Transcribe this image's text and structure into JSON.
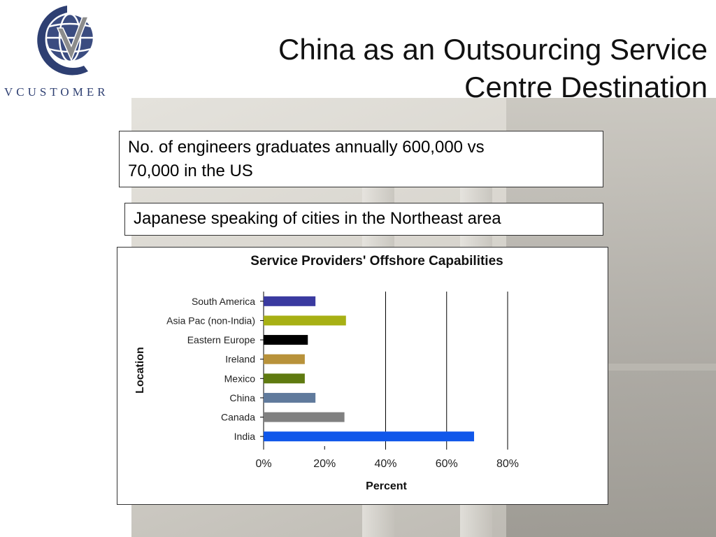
{
  "branding": {
    "company_name": "VCUSTOMER"
  },
  "slide": {
    "title_line1": "China as an Outsourcing Service",
    "title_line2": "Centre Destination"
  },
  "callouts": {
    "box1_line1": "No. of engineers graduates annually 600,000 vs",
    "box1_line2": "70,000 in the US",
    "box2": "Japanese speaking of cities in the Northeast area"
  },
  "colors": {
    "logo_blue": "#2e3f72",
    "logo_gray": "#8c8c8c"
  },
  "chart_data": {
    "type": "bar",
    "orientation": "horizontal",
    "title": "Service Providers' Offshore Capabilities",
    "xlabel": "Percent",
    "ylabel": "Location",
    "xlim": [
      0,
      80
    ],
    "xticks": [
      0,
      20,
      40,
      60,
      80
    ],
    "xtick_labels": [
      "0%",
      "20%",
      "40%",
      "60%",
      "80%"
    ],
    "grid": "vertical lines at 40%, 60%, 80%",
    "categories": [
      "South America",
      "Asia Pac (non-India)",
      "Eastern Europe",
      "Ireland",
      "Mexico",
      "China",
      "Canada",
      "India"
    ],
    "values": [
      17,
      27,
      14.5,
      13.5,
      13.5,
      17,
      26.5,
      69
    ],
    "bar_colors": [
      "#3a3aa0",
      "#a7b014",
      "#000000",
      "#b8923a",
      "#5f7a10",
      "#607a9c",
      "#808080",
      "#1057ea"
    ]
  }
}
